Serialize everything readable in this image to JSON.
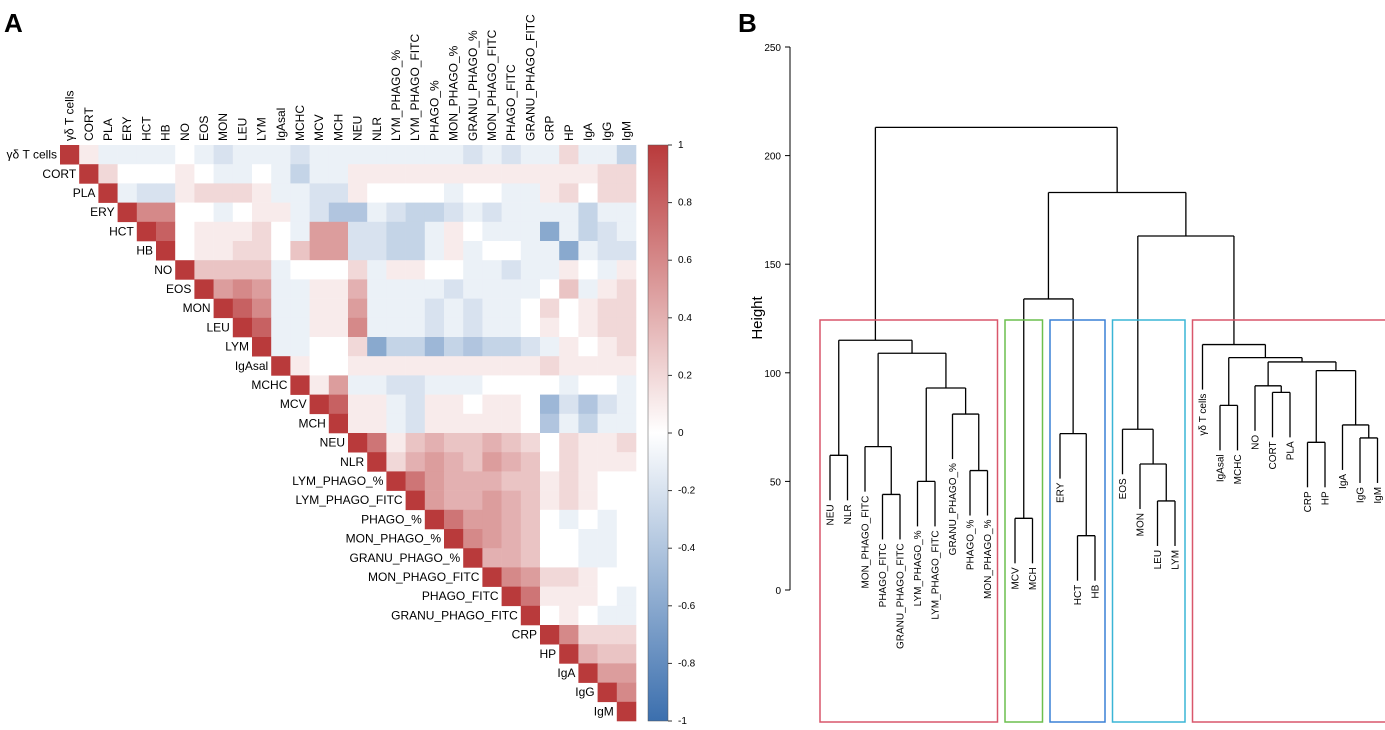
{
  "chart_data": [
    {
      "type": "heatmap",
      "panel": "A",
      "labels": [
        "γδ T cells",
        "CORT",
        "PLA",
        "ERY",
        "HCT",
        "HB",
        "NO",
        "EOS",
        "MON",
        "LEU",
        "LYM",
        "IgAsal",
        "MCHC",
        "MCV",
        "MCH",
        "NEU",
        "NLR",
        "LYM_PHAGO_%",
        "LYM_PHAGO_FITC",
        "PHAGO_%",
        "MON_PHAGO_%",
        "GRANU_PHAGO_%",
        "MON_PHAGO_FITC",
        "PHAGO_FITC",
        "GRANU_PHAGO_FITC",
        "CRP",
        "HP",
        "IgA",
        "IgG",
        "IgM"
      ],
      "matrix": [
        [
          1,
          0.1,
          -0.1,
          -0.1,
          -0.1,
          -0.1,
          0,
          -0.1,
          -0.2,
          -0.1,
          -0.1,
          -0.1,
          -0.2,
          -0.1,
          -0.1,
          -0.1,
          -0.1,
          -0.1,
          -0.1,
          -0.1,
          -0.1,
          -0.2,
          -0.1,
          -0.2,
          -0.1,
          -0.1,
          0.2,
          -0.1,
          -0.1,
          -0.3
        ],
        [
          1,
          0.2,
          0,
          0,
          0,
          0.1,
          0,
          -0.1,
          -0.1,
          0,
          -0.1,
          -0.3,
          -0.1,
          -0.1,
          0.1,
          0.1,
          0.1,
          0.1,
          0.1,
          0.1,
          0.1,
          0.1,
          0.1,
          0.1,
          0.1,
          0.1,
          0.1,
          0.2,
          0.2
        ],
        [
          1,
          -0.1,
          -0.2,
          -0.2,
          0.1,
          0.2,
          0.2,
          0.2,
          0.1,
          -0.1,
          -0.1,
          -0.2,
          -0.2,
          0.1,
          0,
          0,
          0,
          0,
          -0.1,
          0,
          0,
          -0.1,
          -0.1,
          0.1,
          0.2,
          0,
          0.2,
          0.2
        ],
        [
          1,
          0.6,
          0.6,
          0,
          0,
          -0.1,
          0,
          0.1,
          0.1,
          -0.1,
          -0.2,
          -0.4,
          -0.4,
          -0.1,
          -0.2,
          -0.3,
          -0.3,
          -0.2,
          -0.1,
          -0.2,
          -0.1,
          -0.1,
          -0.1,
          -0.1,
          -0.3,
          -0.1,
          -0.1
        ],
        [
          1,
          0.8,
          0,
          0.1,
          0.1,
          0.1,
          0.2,
          0,
          -0.1,
          0.5,
          0.5,
          -0.2,
          -0.2,
          -0.3,
          -0.3,
          -0.1,
          0.1,
          0,
          -0.1,
          -0.1,
          -0.1,
          -0.6,
          -0.1,
          -0.3,
          -0.2,
          -0.1
        ],
        [
          1,
          0,
          0.1,
          0.1,
          0.2,
          0.2,
          0,
          0.3,
          0.5,
          0.5,
          -0.2,
          -0.2,
          -0.3,
          -0.3,
          -0.1,
          0.1,
          -0.1,
          0,
          0,
          -0.1,
          -0.1,
          -0.6,
          -0.1,
          -0.2,
          -0.2
        ],
        [
          1,
          0.3,
          0.3,
          0.3,
          0.3,
          -0.1,
          0,
          0,
          0,
          0.2,
          -0.1,
          0.1,
          0.1,
          0,
          0,
          -0.1,
          -0.1,
          -0.2,
          -0.1,
          -0.1,
          0.1,
          0,
          -0.1,
          0.1
        ],
        [
          1,
          0.5,
          0.6,
          0.5,
          -0.1,
          -0.1,
          0.1,
          0.1,
          0.4,
          -0.1,
          -0.1,
          -0.1,
          -0.1,
          -0.2,
          -0.1,
          -0.1,
          -0.1,
          -0.1,
          0,
          0.3,
          -0.1,
          0.1,
          0.2
        ],
        [
          1,
          0.8,
          0.6,
          -0.1,
          -0.1,
          0.1,
          0.1,
          0.5,
          -0.1,
          -0.1,
          -0.1,
          -0.2,
          -0.1,
          -0.2,
          -0.1,
          -0.1,
          0,
          0.2,
          0,
          0.1,
          0.2,
          0.2
        ],
        [
          1,
          0.8,
          -0.1,
          -0.1,
          0.1,
          0.1,
          0.6,
          -0.1,
          -0.1,
          -0.1,
          -0.2,
          -0.1,
          -0.2,
          -0.1,
          -0.1,
          0,
          0.1,
          0,
          0.1,
          0.2,
          0.2
        ],
        [
          1,
          -0.1,
          -0.1,
          0,
          0,
          0.2,
          -0.6,
          -0.3,
          -0.3,
          -0.5,
          -0.3,
          -0.4,
          -0.3,
          -0.3,
          -0.2,
          -0.1,
          0.1,
          0,
          0.1,
          0.2
        ],
        [
          1,
          0.1,
          0,
          0,
          0.1,
          0.1,
          0.1,
          0.1,
          0.1,
          0.1,
          0.1,
          0.1,
          0.1,
          0.1,
          0.2,
          0.1,
          0.1,
          0.1,
          0.1
        ],
        [
          1,
          0.1,
          0.5,
          -0.1,
          -0.1,
          -0.2,
          -0.2,
          -0.1,
          -0.1,
          -0.1,
          0,
          0,
          0,
          0,
          -0.1,
          0,
          0,
          -0.1
        ],
        [
          1,
          0.8,
          0.1,
          0.1,
          -0.1,
          -0.2,
          0.1,
          0.1,
          0,
          0.1,
          0.1,
          0,
          -0.5,
          -0.2,
          -0.4,
          -0.2,
          -0.1
        ],
        [
          1,
          0.1,
          0.1,
          -0.1,
          -0.2,
          0.1,
          0.1,
          0.1,
          0.1,
          0.1,
          0,
          -0.4,
          -0.1,
          -0.3,
          -0.1,
          -0.1
        ],
        [
          1,
          0.7,
          0.1,
          0.3,
          0.4,
          0.3,
          0.3,
          0.4,
          0.3,
          0.2,
          0,
          0.2,
          0.1,
          0.1,
          0.2
        ],
        [
          1,
          0.2,
          0.4,
          0.5,
          0.4,
          0.3,
          0.5,
          0.4,
          0.3,
          0,
          0.2,
          0.1,
          0.1,
          0.1
        ],
        [
          1,
          0.7,
          0.5,
          0.4,
          0.4,
          0.4,
          0.3,
          0.3,
          0.1,
          0.2,
          0.1,
          0,
          0
        ],
        [
          1,
          0.5,
          0.4,
          0.4,
          0.5,
          0.4,
          0.3,
          0.1,
          0.2,
          0.1,
          0,
          0
        ],
        [
          1,
          0.7,
          0.5,
          0.5,
          0.4,
          0.3,
          0,
          -0.1,
          0,
          -0.1,
          0
        ],
        [
          1,
          0.6,
          0.5,
          0.4,
          0.3,
          0,
          0,
          -0.1,
          -0.1,
          0
        ],
        [
          1,
          0.4,
          0.4,
          0.3,
          0,
          0,
          -0.1,
          -0.1,
          0
        ],
        [
          1,
          0.6,
          0.5,
          0.2,
          0.2,
          0.1,
          0,
          0
        ],
        [
          1,
          0.7,
          0.1,
          0.1,
          0.1,
          0,
          -0.1
        ],
        [
          1,
          0,
          0.1,
          0,
          -0.1,
          -0.1
        ],
        [
          1,
          0.6,
          0.2,
          0.2,
          0.2
        ],
        [
          1,
          0.4,
          0.3,
          0.3
        ],
        [
          1,
          0.5,
          0.5
        ],
        [
          1,
          0.6
        ],
        [
          1
        ]
      ],
      "colormap": [
        "#3b6fae",
        "#ffffff",
        "#b93a3b"
      ],
      "zlim": [
        -1,
        1
      ],
      "zticks": [
        1,
        0.8,
        0.6,
        0.4,
        0.2,
        0,
        -0.2,
        -0.4,
        -0.6,
        -0.8,
        -1
      ]
    },
    {
      "type": "dendrogram",
      "panel": "B",
      "ylabel": "Height",
      "ylim": [
        0,
        250
      ],
      "yticks": [
        0,
        50,
        100,
        150,
        200,
        250
      ],
      "leaves": [
        "NEU",
        "NLR",
        "MON_PHAGO_FITC",
        "PHAGO_FITC",
        "GRANU_PHAGO_FITC",
        "LYM_PHAGO_%",
        "LYM_PHAGO_FITC",
        "GRANU_PHAGO_%",
        "PHAGO_%",
        "MON_PHAGO_%",
        "MCV",
        "MCH",
        "ERY",
        "HCT",
        "HB",
        "EOS",
        "MON",
        "LEU",
        "LYM",
        "γδ T cells",
        "IgAsal",
        "MCHC",
        "NO",
        "CORT",
        "PLA",
        "CRP",
        "HP",
        "IgA",
        "IgG",
        "IgM"
      ],
      "merges": [
        {
          "pair": [
            -14,
            -15
          ],
          "height": 25
        },
        {
          "pair": [
            -11,
            -12
          ],
          "height": 33
        },
        {
          "pair": [
            -18,
            -19
          ],
          "height": 41
        },
        {
          "pair": [
            -4,
            -5
          ],
          "height": 44
        },
        {
          "pair": [
            -6,
            -7
          ],
          "height": 50
        },
        {
          "pair": [
            -9,
            -10
          ],
          "height": 55
        },
        {
          "pair": [
            -17,
            3
          ],
          "height": 58
        },
        {
          "pair": [
            -1,
            -2
          ],
          "height": 62
        },
        {
          "pair": [
            -3,
            4
          ],
          "height": 66
        },
        {
          "pair": [
            -26,
            -27
          ],
          "height": 68
        },
        {
          "pair": [
            -29,
            -30
          ],
          "height": 70
        },
        {
          "pair": [
            -13,
            1
          ],
          "height": 72
        },
        {
          "pair": [
            -16,
            7
          ],
          "height": 74
        },
        {
          "pair": [
            -28,
            11
          ],
          "height": 76
        },
        {
          "pair": [
            -8,
            6
          ],
          "height": 81
        },
        {
          "pair": [
            -21,
            -22
          ],
          "height": 85
        },
        {
          "pair": [
            -24,
            -25
          ],
          "height": 91
        },
        {
          "pair": [
            5,
            15
          ],
          "height": 93
        },
        {
          "pair": [
            -23,
            17
          ],
          "height": 94
        },
        {
          "pair": [
            10,
            14
          ],
          "height": 101
        },
        {
          "pair": [
            19,
            20
          ],
          "height": 105
        },
        {
          "pair": [
            16,
            21
          ],
          "height": 107
        },
        {
          "pair": [
            9,
            18
          ],
          "height": 109
        },
        {
          "pair": [
            -20,
            22
          ],
          "height": 113
        },
        {
          "pair": [
            8,
            23
          ],
          "height": 115
        },
        {
          "pair": [
            2,
            12
          ],
          "height": 134
        },
        {
          "pair": [
            13,
            24
          ],
          "height": 163
        },
        {
          "pair": [
            26,
            27
          ],
          "height": 183
        },
        {
          "pair": [
            25,
            28
          ],
          "height": 213
        }
      ],
      "clusters": [
        {
          "size": 10,
          "color": "#d9576b"
        },
        {
          "size": 2,
          "color": "#6cbf4e"
        },
        {
          "size": 3,
          "color": "#3a80d6"
        },
        {
          "size": 4,
          "color": "#3ab5d6"
        },
        {
          "size": 11,
          "color": "#d9576b"
        }
      ]
    }
  ]
}
